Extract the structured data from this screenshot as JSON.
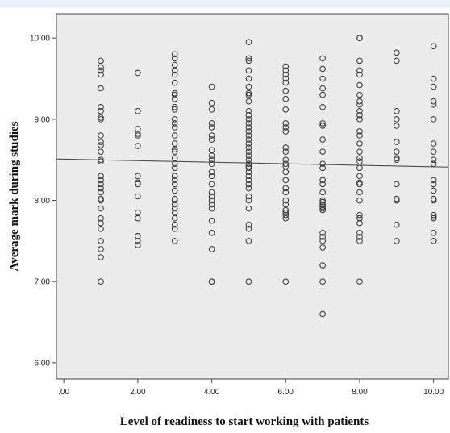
{
  "chart_data": {
    "type": "scatter",
    "title": "",
    "xlabel": "Level of readiness to start working with patients",
    "ylabel": "Average  mark during studies",
    "xlim": [
      -0.2,
      10.4
    ],
    "ylim": [
      5.8,
      10.3
    ],
    "x_ticks": [
      ".00",
      "2.00",
      "4.00",
      "6.00",
      "8.00",
      "10.00"
    ],
    "x_tick_values": [
      0,
      2,
      4,
      6,
      8,
      10
    ],
    "y_ticks": [
      "6.00",
      "7.00",
      "8.00",
      "9.00",
      "10.00"
    ],
    "y_tick_values": [
      6,
      7,
      8,
      9,
      10
    ],
    "grid": false,
    "background_color": "#ececec",
    "marker_color": "#333333",
    "fit_line": {
      "x": [
        -0.2,
        10.4
      ],
      "y": [
        8.51,
        8.41
      ]
    },
    "series": [
      {
        "points": [
          [
            1,
            9.72
          ],
          [
            1,
            9.64
          ],
          [
            1,
            9.6
          ],
          [
            1,
            9.55
          ],
          [
            1,
            9.38
          ],
          [
            1,
            9.15
          ],
          [
            1,
            9.1
          ],
          [
            1,
            9.02
          ],
          [
            1,
            9.0
          ],
          [
            1,
            8.8
          ],
          [
            1,
            8.72
          ],
          [
            1,
            8.68
          ],
          [
            1,
            8.6
          ],
          [
            1,
            8.5
          ],
          [
            1,
            8.48
          ],
          [
            1,
            8.3
          ],
          [
            1,
            8.25
          ],
          [
            1,
            8.2
          ],
          [
            1,
            8.15
          ],
          [
            1,
            8.1
          ],
          [
            1,
            8.02
          ],
          [
            1,
            8.0
          ],
          [
            1,
            7.9
          ],
          [
            1,
            7.78
          ],
          [
            1,
            7.72
          ],
          [
            1,
            7.65
          ],
          [
            1,
            7.5
          ],
          [
            1,
            7.4
          ],
          [
            1,
            7.3
          ],
          [
            1,
            7.0
          ],
          [
            2,
            9.57
          ],
          [
            2,
            9.1
          ],
          [
            2,
            8.88
          ],
          [
            2,
            8.82
          ],
          [
            2,
            8.8
          ],
          [
            2,
            8.67
          ],
          [
            2,
            8.3
          ],
          [
            2,
            8.22
          ],
          [
            2,
            8.2
          ],
          [
            2,
            8.05
          ],
          [
            2,
            7.85
          ],
          [
            2,
            7.78
          ],
          [
            2,
            7.56
          ],
          [
            2,
            7.5
          ],
          [
            2,
            7.45
          ],
          [
            3,
            9.8
          ],
          [
            3,
            9.75
          ],
          [
            3,
            9.67
          ],
          [
            3,
            9.6
          ],
          [
            3,
            9.55
          ],
          [
            3,
            9.45
          ],
          [
            3,
            9.32
          ],
          [
            3,
            9.3
          ],
          [
            3,
            9.25
          ],
          [
            3,
            9.15
          ],
          [
            3,
            9.12
          ],
          [
            3,
            9.0
          ],
          [
            3,
            8.95
          ],
          [
            3,
            8.9
          ],
          [
            3,
            8.8
          ],
          [
            3,
            8.7
          ],
          [
            3,
            8.63
          ],
          [
            3,
            8.6
          ],
          [
            3,
            8.52
          ],
          [
            3,
            8.45
          ],
          [
            3,
            8.4
          ],
          [
            3,
            8.3
          ],
          [
            3,
            8.25
          ],
          [
            3,
            8.2
          ],
          [
            3,
            8.12
          ],
          [
            3,
            8.02
          ],
          [
            3,
            8.0
          ],
          [
            3,
            7.95
          ],
          [
            3,
            7.9
          ],
          [
            3,
            7.85
          ],
          [
            3,
            7.78
          ],
          [
            3,
            7.7
          ],
          [
            3,
            7.65
          ],
          [
            3,
            7.5
          ],
          [
            4,
            9.4
          ],
          [
            4,
            9.2
          ],
          [
            4,
            9.12
          ],
          [
            4,
            8.95
          ],
          [
            4,
            8.9
          ],
          [
            4,
            8.8
          ],
          [
            4,
            8.75
          ],
          [
            4,
            8.62
          ],
          [
            4,
            8.55
          ],
          [
            4,
            8.5
          ],
          [
            4,
            8.45
          ],
          [
            4,
            8.35
          ],
          [
            4,
            8.3
          ],
          [
            4,
            8.2
          ],
          [
            4,
            8.1
          ],
          [
            4,
            8.05
          ],
          [
            4,
            8.0
          ],
          [
            4,
            7.95
          ],
          [
            4,
            7.9
          ],
          [
            4,
            7.75
          ],
          [
            4,
            7.6
          ],
          [
            4,
            7.4
          ],
          [
            4,
            7.0
          ],
          [
            4,
            7.0
          ],
          [
            5,
            9.95
          ],
          [
            5,
            9.75
          ],
          [
            5,
            9.72
          ],
          [
            5,
            9.6
          ],
          [
            5,
            9.5
          ],
          [
            5,
            9.4
          ],
          [
            5,
            9.32
          ],
          [
            5,
            9.3
          ],
          [
            5,
            9.22
          ],
          [
            5,
            9.1
          ],
          [
            5,
            9.05
          ],
          [
            5,
            9.0
          ],
          [
            5,
            8.95
          ],
          [
            5,
            8.9
          ],
          [
            5,
            8.85
          ],
          [
            5,
            8.8
          ],
          [
            5,
            8.75
          ],
          [
            5,
            8.7
          ],
          [
            5,
            8.65
          ],
          [
            5,
            8.6
          ],
          [
            5,
            8.55
          ],
          [
            5,
            8.5
          ],
          [
            5,
            8.45
          ],
          [
            5,
            8.42
          ],
          [
            5,
            8.4
          ],
          [
            5,
            8.35
          ],
          [
            5,
            8.3
          ],
          [
            5,
            8.25
          ],
          [
            5,
            8.2
          ],
          [
            5,
            8.15
          ],
          [
            5,
            8.05
          ],
          [
            5,
            8.0
          ],
          [
            5,
            7.9
          ],
          [
            5,
            7.7
          ],
          [
            5,
            7.65
          ],
          [
            5,
            7.5
          ],
          [
            5,
            7.0
          ],
          [
            6,
            9.65
          ],
          [
            6,
            9.6
          ],
          [
            6,
            9.55
          ],
          [
            6,
            9.5
          ],
          [
            6,
            9.45
          ],
          [
            6,
            9.35
          ],
          [
            6,
            9.25
          ],
          [
            6,
            9.12
          ],
          [
            6,
            8.95
          ],
          [
            6,
            8.9
          ],
          [
            6,
            8.85
          ],
          [
            6,
            8.65
          ],
          [
            6,
            8.6
          ],
          [
            6,
            8.5
          ],
          [
            6,
            8.45
          ],
          [
            6,
            8.42
          ],
          [
            6,
            8.35
          ],
          [
            6,
            8.25
          ],
          [
            6,
            8.15
          ],
          [
            6,
            8.1
          ],
          [
            6,
            8.0
          ],
          [
            6,
            7.95
          ],
          [
            6,
            7.88
          ],
          [
            6,
            7.85
          ],
          [
            6,
            7.82
          ],
          [
            6,
            7.78
          ],
          [
            6,
            7.0
          ],
          [
            7,
            9.75
          ],
          [
            7,
            9.62
          ],
          [
            7,
            9.5
          ],
          [
            7,
            9.38
          ],
          [
            7,
            9.3
          ],
          [
            7,
            9.15
          ],
          [
            7,
            8.95
          ],
          [
            7,
            8.92
          ],
          [
            7,
            8.75
          ],
          [
            7,
            8.6
          ],
          [
            7,
            8.45
          ],
          [
            7,
            8.4
          ],
          [
            7,
            8.25
          ],
          [
            7,
            8.2
          ],
          [
            7,
            8.1
          ],
          [
            7,
            8.0
          ],
          [
            7,
            7.98
          ],
          [
            7,
            7.95
          ],
          [
            7,
            7.92
          ],
          [
            7,
            7.9
          ],
          [
            7,
            7.88
          ],
          [
            7,
            7.6
          ],
          [
            7,
            7.55
          ],
          [
            7,
            7.5
          ],
          [
            7,
            7.42
          ],
          [
            7,
            7.2
          ],
          [
            7,
            7.0
          ],
          [
            7,
            6.6
          ],
          [
            8,
            10.0
          ],
          [
            8,
            10.0
          ],
          [
            8,
            9.72
          ],
          [
            8,
            9.6
          ],
          [
            8,
            9.55
          ],
          [
            8,
            9.42
          ],
          [
            8,
            9.3
          ],
          [
            8,
            9.22
          ],
          [
            8,
            9.18
          ],
          [
            8,
            9.1
          ],
          [
            8,
            9.05
          ],
          [
            8,
            9.0
          ],
          [
            8,
            8.85
          ],
          [
            8,
            8.8
          ],
          [
            8,
            8.7
          ],
          [
            8,
            8.6
          ],
          [
            8,
            8.52
          ],
          [
            8,
            8.48
          ],
          [
            8,
            8.4
          ],
          [
            8,
            8.3
          ],
          [
            8,
            8.22
          ],
          [
            8,
            8.2
          ],
          [
            8,
            8.1
          ],
          [
            8,
            8.0
          ],
          [
            8,
            7.82
          ],
          [
            8,
            7.78
          ],
          [
            8,
            7.72
          ],
          [
            8,
            7.6
          ],
          [
            8,
            7.55
          ],
          [
            8,
            7.5
          ],
          [
            8,
            7.0
          ],
          [
            9,
            9.82
          ],
          [
            9,
            9.72
          ],
          [
            9,
            9.1
          ],
          [
            9,
            9.0
          ],
          [
            9,
            8.92
          ],
          [
            9,
            8.72
          ],
          [
            9,
            8.6
          ],
          [
            9,
            8.52
          ],
          [
            9,
            8.5
          ],
          [
            9,
            8.2
          ],
          [
            9,
            8.02
          ],
          [
            9,
            8.0
          ],
          [
            9,
            7.7
          ],
          [
            9,
            7.5
          ],
          [
            10,
            9.9
          ],
          [
            10,
            9.5
          ],
          [
            10,
            9.4
          ],
          [
            10,
            9.22
          ],
          [
            10,
            9.18
          ],
          [
            10,
            9.0
          ],
          [
            10,
            8.7
          ],
          [
            10,
            8.6
          ],
          [
            10,
            8.5
          ],
          [
            10,
            8.45
          ],
          [
            10,
            8.25
          ],
          [
            10,
            8.2
          ],
          [
            10,
            8.12
          ],
          [
            10,
            8.02
          ],
          [
            10,
            8.0
          ],
          [
            10,
            7.82
          ],
          [
            10,
            7.8
          ],
          [
            10,
            7.78
          ],
          [
            10,
            7.6
          ],
          [
            10,
            7.5
          ],
          [
            10,
            7.5
          ]
        ]
      }
    ]
  }
}
